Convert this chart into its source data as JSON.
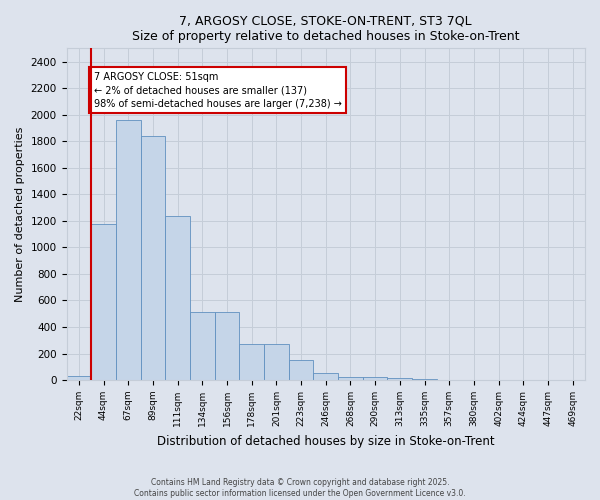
{
  "title1": "7, ARGOSY CLOSE, STOKE-ON-TRENT, ST3 7QL",
  "title2": "Size of property relative to detached houses in Stoke-on-Trent",
  "xlabel": "Distribution of detached houses by size in Stoke-on-Trent",
  "ylabel": "Number of detached properties",
  "categories": [
    "22sqm",
    "44sqm",
    "67sqm",
    "89sqm",
    "111sqm",
    "134sqm",
    "156sqm",
    "178sqm",
    "201sqm",
    "223sqm",
    "246sqm",
    "268sqm",
    "290sqm",
    "313sqm",
    "335sqm",
    "357sqm",
    "380sqm",
    "402sqm",
    "424sqm",
    "447sqm",
    "469sqm"
  ],
  "values": [
    30,
    1175,
    1960,
    1840,
    1240,
    510,
    510,
    270,
    270,
    155,
    55,
    25,
    25,
    15,
    8,
    4,
    4,
    2,
    1,
    1,
    1
  ],
  "bar_color": "#c5d5e8",
  "bar_edge_color": "#6090c0",
  "vline_x_index": 1,
  "vline_color": "#cc0000",
  "annotation_text": "7 ARGOSY CLOSE: 51sqm\n← 2% of detached houses are smaller (137)\n98% of semi-detached houses are larger (7,238) →",
  "annotation_box_facecolor": "#ffffff",
  "annotation_box_edgecolor": "#cc0000",
  "grid_color": "#c5cdd8",
  "bg_color": "#dde3ed",
  "footer1": "Contains HM Land Registry data © Crown copyright and database right 2025.",
  "footer2": "Contains public sector information licensed under the Open Government Licence v3.0.",
  "ylim": [
    0,
    2500
  ],
  "yticks": [
    0,
    200,
    400,
    600,
    800,
    1000,
    1200,
    1400,
    1600,
    1800,
    2000,
    2200,
    2400
  ]
}
